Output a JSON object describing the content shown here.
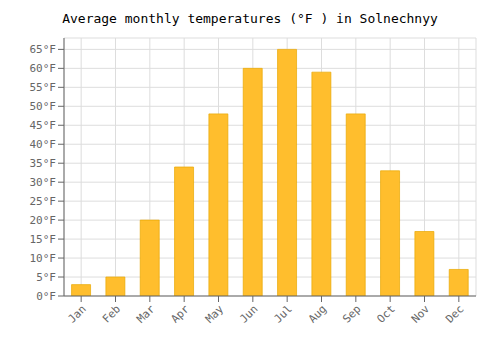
{
  "chart_data": {
    "type": "bar",
    "title": "Average monthly temperatures (°F ) in Solnechnyy",
    "categories": [
      "Jan",
      "Feb",
      "Mar",
      "Apr",
      "May",
      "Jun",
      "Jul",
      "Aug",
      "Sep",
      "Oct",
      "Nov",
      "Dec"
    ],
    "values": [
      3,
      5,
      20,
      34,
      48,
      60,
      65,
      59,
      48,
      33,
      17,
      7
    ],
    "color": "#FFBE2D",
    "ylim": [
      0,
      68
    ],
    "yticks": [
      {
        "value": 0,
        "label": "0°F"
      },
      {
        "value": 5,
        "label": "5°F"
      },
      {
        "value": 10,
        "label": "10°F"
      },
      {
        "value": 15,
        "label": "15°F"
      },
      {
        "value": 20,
        "label": "20°F"
      },
      {
        "value": 25,
        "label": "25°F"
      },
      {
        "value": 30,
        "label": "30°F"
      },
      {
        "value": 35,
        "label": "35°F"
      },
      {
        "value": 40,
        "label": "40°F"
      },
      {
        "value": 45,
        "label": "45°F"
      },
      {
        "value": 50,
        "label": "50°F"
      },
      {
        "value": 55,
        "label": "55°F"
      },
      {
        "value": 60,
        "label": "60°F"
      },
      {
        "value": 65,
        "label": "65°F"
      }
    ],
    "grid": true
  }
}
